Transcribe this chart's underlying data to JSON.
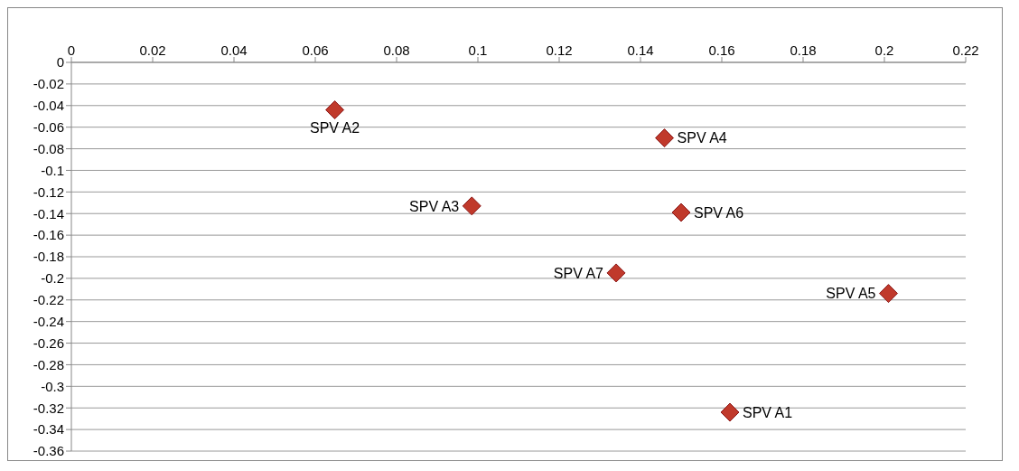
{
  "chart_data": {
    "type": "scatter",
    "x": [
      0.162,
      0.0648,
      0.0985,
      0.1459,
      0.201,
      0.15,
      0.134
    ],
    "values": [
      -0.324,
      -0.044,
      -0.133,
      -0.07,
      -0.214,
      -0.139,
      -0.195
    ],
    "color": "#c0392b",
    "marker": "diamond",
    "grid": "y",
    "legend": false,
    "xlim": [
      0,
      0.22
    ],
    "xticks": [
      0,
      0.02,
      0.04,
      0.06,
      0.08,
      0.1,
      0.12,
      0.14,
      0.16,
      0.18,
      0.2,
      0.22
    ],
    "ylim": [
      -0.36,
      0
    ],
    "yticks": [
      0,
      -0.02,
      -0.04,
      -0.06,
      -0.08,
      -0.1,
      -0.12,
      -0.14,
      -0.16,
      -0.18,
      -0.2,
      -0.22,
      -0.24,
      -0.26,
      -0.28,
      -0.3,
      -0.32,
      -0.34,
      -0.36
    ],
    "annotations": [
      {
        "text": "SPV A1",
        "x": 0.162,
        "y": -0.324
      },
      {
        "text": "SPV  A2",
        "x": 0.0648,
        "y": -0.044
      },
      {
        "text": "SPV A3",
        "x": 0.0985,
        "y": -0.133
      },
      {
        "text": "SPV A4",
        "x": 0.1459,
        "y": -0.07
      },
      {
        "text": "SPV A5",
        "x": 0.201,
        "y": -0.214
      },
      {
        "text": "SPV A6",
        "x": 0.15,
        "y": -0.139
      },
      {
        "text": "SPV A7",
        "x": 0.134,
        "y": -0.195
      }
    ]
  }
}
